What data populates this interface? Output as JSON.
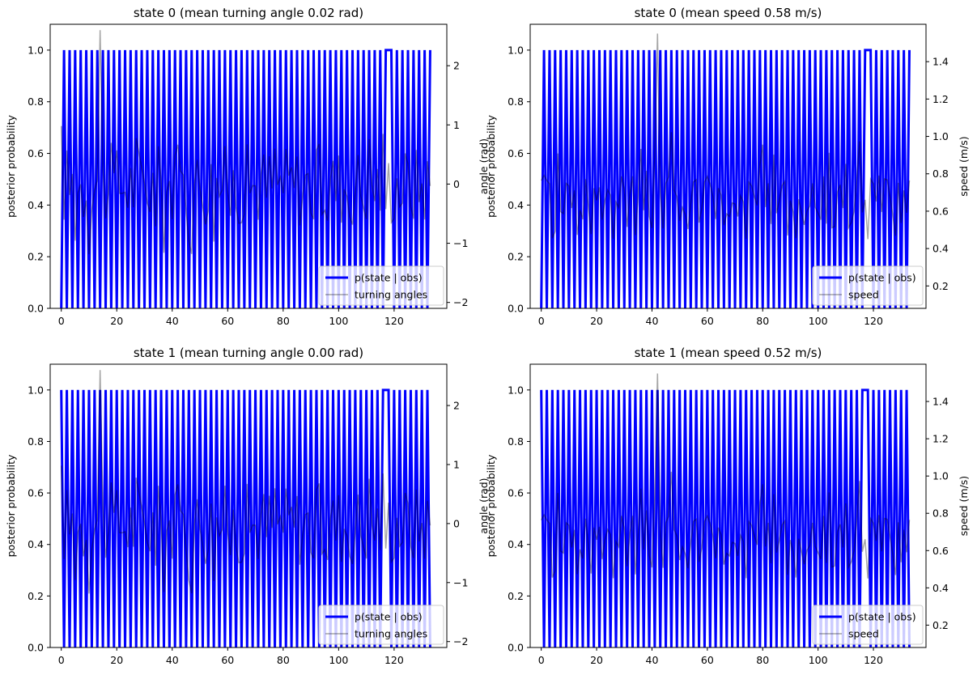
{
  "chart_data": [
    {
      "type": "line",
      "title": "state 0 (mean turning angle 0.02 rad)",
      "ylabel": "posterior probability",
      "y2label": "angle (rad)",
      "xlim": [
        -4,
        139
      ],
      "ylim": [
        0,
        1.1
      ],
      "y2lim": [
        -2.1,
        2.7
      ],
      "xticks": [
        "0",
        "20",
        "40",
        "60",
        "80",
        "100",
        "120"
      ],
      "yticks": [
        "0.0",
        "0.2",
        "0.4",
        "0.6",
        "0.8",
        "1.0"
      ],
      "y2ticks": [
        "−2",
        "−1",
        "0",
        "1",
        "2"
      ],
      "legend": {
        "position": "lower right",
        "entries": [
          "p(state | obs)",
          "turning angles"
        ]
      },
      "series": [
        {
          "name": "p(state | obs)",
          "color": "#0000ff",
          "pattern": "alternating",
          "values": [
            0.0,
            1.0
          ],
          "gap_x": 117
        },
        {
          "name": "turning angles",
          "color": "#000000",
          "opacity": 0.35,
          "axis": "secondary",
          "peak": {
            "x": 14,
            "y": 2.6
          }
        }
      ]
    },
    {
      "type": "line",
      "title": "state 0 (mean speed 0.58 m/s)",
      "ylabel": "posterior probability",
      "y2label": "speed (m/s)",
      "xlim": [
        -4,
        139
      ],
      "ylim": [
        0,
        1.1
      ],
      "y2lim": [
        0.08,
        1.6
      ],
      "xticks": [
        "0",
        "20",
        "40",
        "60",
        "80",
        "100",
        "120"
      ],
      "yticks": [
        "0.0",
        "0.2",
        "0.4",
        "0.6",
        "0.8",
        "1.0"
      ],
      "y2ticks": [
        "0.2",
        "0.4",
        "0.6",
        "0.8",
        "1.0",
        "1.2",
        "1.4"
      ],
      "legend": {
        "position": "lower right",
        "entries": [
          "p(state | obs)",
          "speed"
        ]
      },
      "series": [
        {
          "name": "p(state | obs)",
          "color": "#0000ff",
          "pattern": "alternating",
          "values": [
            0.0,
            1.0
          ],
          "gap_x": 117
        },
        {
          "name": "speed",
          "color": "#000000",
          "opacity": 0.35,
          "axis": "secondary",
          "peak": {
            "x": 42,
            "y": 1.55
          }
        }
      ]
    },
    {
      "type": "line",
      "title": "state 1 (mean turning angle 0.00 rad)",
      "ylabel": "posterior probability",
      "y2label": "angle (rad)",
      "xlim": [
        -4,
        139
      ],
      "ylim": [
        0,
        1.1
      ],
      "y2lim": [
        -2.1,
        2.7
      ],
      "xticks": [
        "0",
        "20",
        "40",
        "60",
        "80",
        "100",
        "120"
      ],
      "yticks": [
        "0.0",
        "0.2",
        "0.4",
        "0.6",
        "0.8",
        "1.0"
      ],
      "y2ticks": [
        "−2",
        "−1",
        "0",
        "1",
        "2"
      ],
      "legend": {
        "position": "lower right",
        "entries": [
          "p(state | obs)",
          "turning angles"
        ]
      },
      "series": [
        {
          "name": "p(state | obs)",
          "color": "#0000ff",
          "pattern": "alternating",
          "values": [
            1.0,
            0.0
          ],
          "gap_x": 117
        },
        {
          "name": "turning angles",
          "color": "#000000",
          "opacity": 0.35,
          "axis": "secondary",
          "peak": {
            "x": 14,
            "y": 2.6
          }
        }
      ]
    },
    {
      "type": "line",
      "title": "state 1 (mean speed 0.52 m/s)",
      "ylabel": "posterior probability",
      "y2label": "speed (m/s)",
      "xlim": [
        -4,
        139
      ],
      "ylim": [
        0,
        1.1
      ],
      "y2lim": [
        0.08,
        1.6
      ],
      "xticks": [
        "0",
        "20",
        "40",
        "60",
        "80",
        "100",
        "120"
      ],
      "yticks": [
        "0.0",
        "0.2",
        "0.4",
        "0.6",
        "0.8",
        "1.0"
      ],
      "y2ticks": [
        "0.2",
        "0.4",
        "0.6",
        "0.8",
        "1.0",
        "1.2",
        "1.4"
      ],
      "legend": {
        "position": "lower right",
        "entries": [
          "p(state | obs)",
          "speed"
        ]
      },
      "series": [
        {
          "name": "p(state | obs)",
          "color": "#0000ff",
          "pattern": "alternating",
          "values": [
            1.0,
            0.0
          ],
          "gap_x": 117
        },
        {
          "name": "speed",
          "color": "#000000",
          "opacity": 0.35,
          "axis": "secondary",
          "peak": {
            "x": 42,
            "y": 1.55
          }
        }
      ]
    }
  ]
}
